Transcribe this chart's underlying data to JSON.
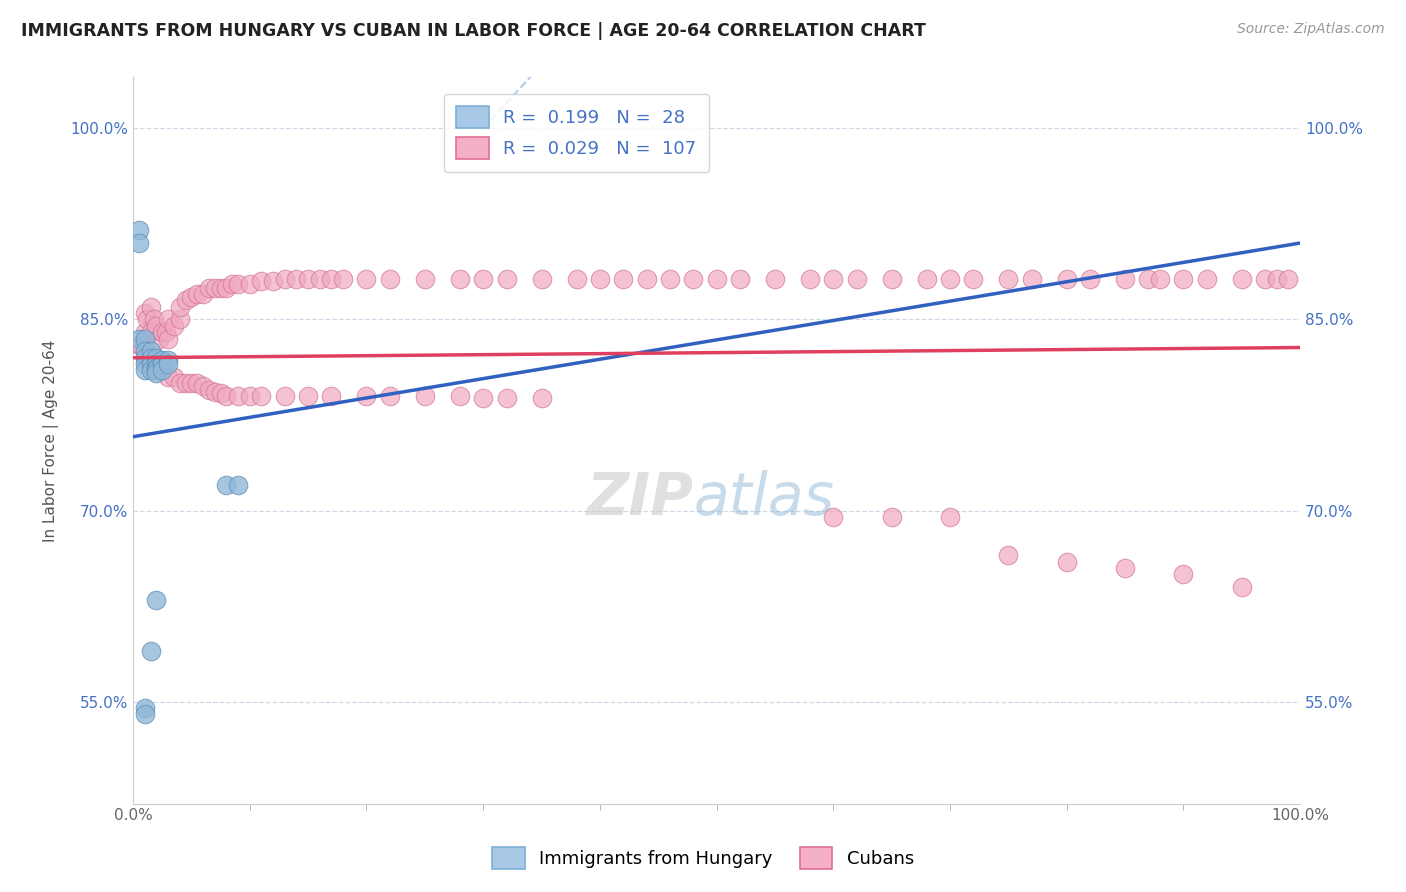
{
  "title": "IMMIGRANTS FROM HUNGARY VS CUBAN IN LABOR FORCE | AGE 20-64 CORRELATION CHART",
  "source": "Source: ZipAtlas.com",
  "ylabel": "In Labor Force | Age 20-64",
  "xlim": [
    0.0,
    1.0
  ],
  "ylim": [
    0.47,
    1.04
  ],
  "yticks": [
    0.55,
    0.7,
    0.85,
    1.0
  ],
  "yticklabels": [
    "55.0%",
    "70.0%",
    "85.0%",
    "100.0%"
  ],
  "xtick_positions": [
    0.0,
    1.0
  ],
  "xticklabels": [
    "0.0%",
    "100.0%"
  ],
  "legend_entries": [
    {
      "label": "Immigrants from Hungary",
      "R": "0.199",
      "N": "28",
      "color": "#a8c8e8"
    },
    {
      "label": "Cubans",
      "R": "0.029",
      "N": "107",
      "color": "#f4b0c8"
    }
  ],
  "hungary_x": [
    0.005,
    0.005,
    0.005,
    0.01,
    0.01,
    0.01,
    0.01,
    0.01,
    0.015,
    0.015,
    0.015,
    0.015,
    0.02,
    0.02,
    0.02,
    0.02,
    0.02,
    0.025,
    0.025,
    0.025,
    0.03,
    0.03,
    0.08,
    0.09,
    0.02,
    0.015,
    0.01,
    0.01
  ],
  "hungary_y": [
    0.92,
    0.91,
    0.835,
    0.835,
    0.825,
    0.82,
    0.815,
    0.81,
    0.825,
    0.82,
    0.815,
    0.81,
    0.82,
    0.815,
    0.812,
    0.81,
    0.808,
    0.818,
    0.815,
    0.81,
    0.818,
    0.815,
    0.72,
    0.72,
    0.63,
    0.59,
    0.545,
    0.54
  ],
  "cuban_x": [
    0.005,
    0.007,
    0.01,
    0.01,
    0.012,
    0.015,
    0.015,
    0.018,
    0.02,
    0.022,
    0.025,
    0.028,
    0.03,
    0.03,
    0.035,
    0.04,
    0.04,
    0.045,
    0.05,
    0.055,
    0.06,
    0.065,
    0.07,
    0.075,
    0.08,
    0.085,
    0.09,
    0.1,
    0.11,
    0.12,
    0.13,
    0.14,
    0.15,
    0.16,
    0.17,
    0.18,
    0.2,
    0.22,
    0.25,
    0.28,
    0.3,
    0.32,
    0.35,
    0.38,
    0.4,
    0.42,
    0.44,
    0.46,
    0.48,
    0.5,
    0.52,
    0.55,
    0.58,
    0.6,
    0.62,
    0.65,
    0.68,
    0.7,
    0.72,
    0.75,
    0.77,
    0.8,
    0.82,
    0.85,
    0.87,
    0.88,
    0.9,
    0.92,
    0.95,
    0.97,
    0.98,
    0.99,
    0.6,
    0.65,
    0.7,
    0.75,
    0.8,
    0.85,
    0.9,
    0.95,
    0.012,
    0.018,
    0.025,
    0.03,
    0.035,
    0.04,
    0.045,
    0.05,
    0.055,
    0.06,
    0.065,
    0.07,
    0.075,
    0.08,
    0.09,
    0.1,
    0.11,
    0.13,
    0.15,
    0.17,
    0.2,
    0.22,
    0.25,
    0.28,
    0.3,
    0.32,
    0.35
  ],
  "cuban_y": [
    0.83,
    0.83,
    0.855,
    0.84,
    0.85,
    0.84,
    0.86,
    0.85,
    0.845,
    0.835,
    0.84,
    0.84,
    0.85,
    0.835,
    0.845,
    0.85,
    0.86,
    0.865,
    0.868,
    0.87,
    0.87,
    0.875,
    0.875,
    0.875,
    0.875,
    0.878,
    0.878,
    0.878,
    0.88,
    0.88,
    0.882,
    0.882,
    0.882,
    0.882,
    0.882,
    0.882,
    0.882,
    0.882,
    0.882,
    0.882,
    0.882,
    0.882,
    0.882,
    0.882,
    0.882,
    0.882,
    0.882,
    0.882,
    0.882,
    0.882,
    0.882,
    0.882,
    0.882,
    0.882,
    0.882,
    0.882,
    0.882,
    0.882,
    0.882,
    0.882,
    0.882,
    0.882,
    0.882,
    0.882,
    0.882,
    0.882,
    0.882,
    0.882,
    0.882,
    0.882,
    0.882,
    0.882,
    0.695,
    0.695,
    0.695,
    0.665,
    0.66,
    0.655,
    0.65,
    0.64,
    0.82,
    0.815,
    0.81,
    0.805,
    0.805,
    0.8,
    0.8,
    0.8,
    0.8,
    0.798,
    0.795,
    0.793,
    0.792,
    0.79,
    0.79,
    0.79,
    0.79,
    0.79,
    0.79,
    0.79,
    0.79,
    0.79,
    0.79,
    0.79,
    0.788,
    0.788,
    0.788
  ],
  "hungary_line_x": [
    0.0,
    1.0
  ],
  "hungary_line_y_start": 0.758,
  "hungary_line_y_end": 0.91,
  "cuban_line_x": [
    0.0,
    1.0
  ],
  "cuban_line_y_start": 0.82,
  "cuban_line_y_end": 0.828,
  "diag_line_x_start": 0.33,
  "diag_line_x_end": 1.0,
  "diag_line_y_start": 1.0,
  "diag_line_y_end": 1.0,
  "watermark_zip": "ZIP",
  "watermark_atlas": "atlas",
  "bg_color": "#ffffff",
  "grid_color": "#d0d8e8",
  "hungary_dot_color": "#90b8d8",
  "hungary_dot_edge": "#6090b8",
  "cuban_dot_color": "#f0a8c0",
  "cuban_dot_edge": "#d07090",
  "hungary_line_color": "#3060c0",
  "cuban_line_color": "#e04060",
  "diag_line_color": "#90b8e8",
  "r_n_color": "#4472c4",
  "title_fontsize": 12.5,
  "axis_label_fontsize": 11,
  "tick_fontsize": 11,
  "legend_fontsize": 13
}
